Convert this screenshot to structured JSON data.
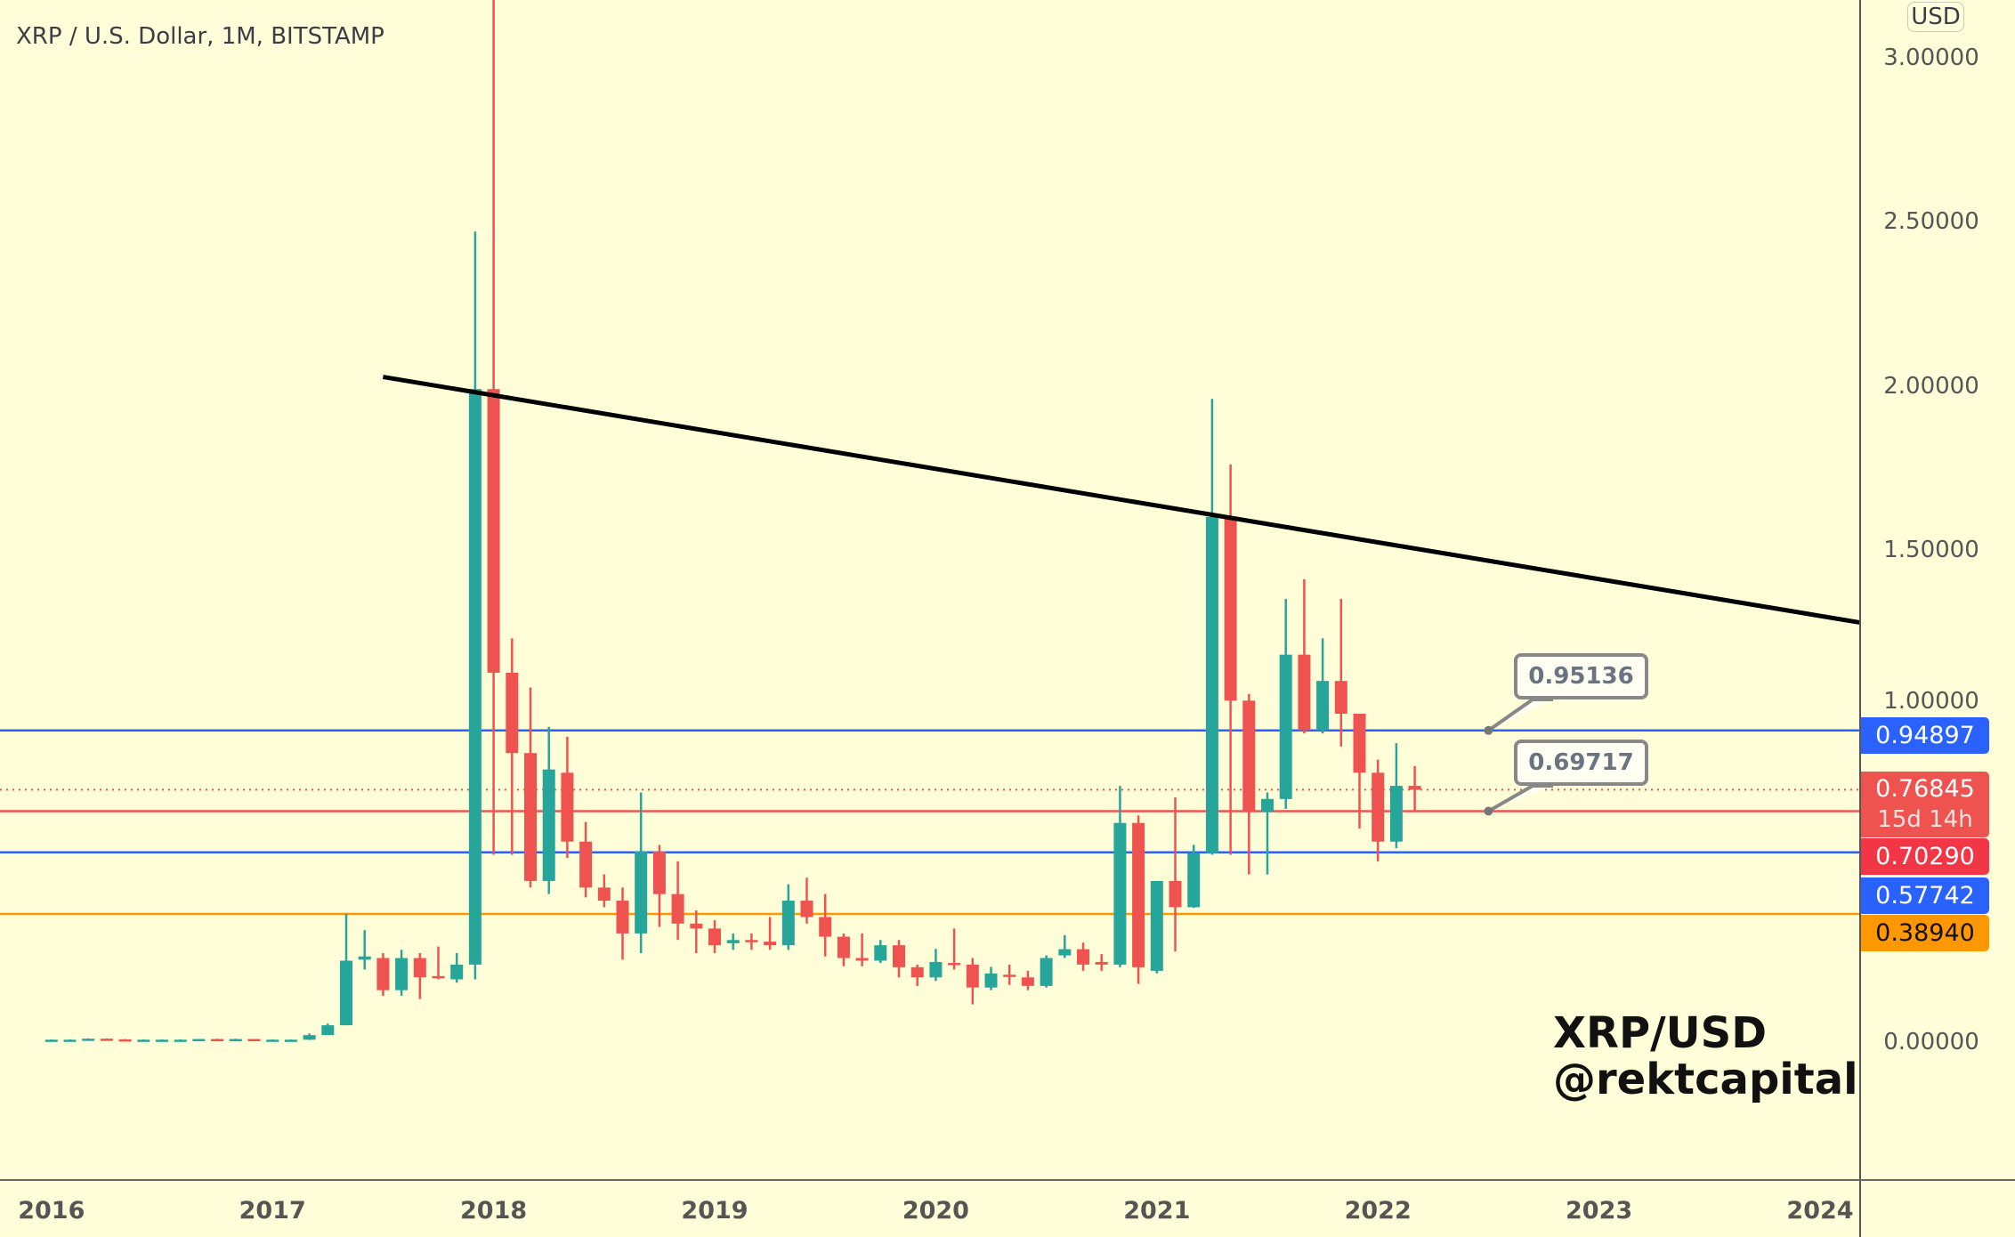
{
  "header": {
    "title": "XRP / U.S. Dollar, 1M, BITSTAMP",
    "currency_button": "USD"
  },
  "watermark": {
    "line1": "XRP/USD",
    "line2": "@rektcapital"
  },
  "colors": {
    "background": "#fffed9",
    "up": "#26a69a",
    "down": "#ef5350",
    "trendline": "#000000",
    "blue_level": "#2962ff",
    "red_level": "#ef5350",
    "orange_level": "#ff9800"
  },
  "chart_data": {
    "type": "candlestick",
    "title": "XRP / U.S. Dollar, 1M, BITSTAMP",
    "interval": "1M",
    "ylim": [
      0,
      3.18
    ],
    "y_ticks": [
      "3.00000",
      "2.50000",
      "2.00000",
      "1.50000",
      "1.00000",
      "0.00000"
    ],
    "y_tick_values": [
      3.0,
      2.5,
      2.0,
      1.5,
      1.0,
      0.0
    ],
    "x_ticks": [
      "2016",
      "2017",
      "2018",
      "2019",
      "2020",
      "2021",
      "2022",
      "2023",
      "2024"
    ],
    "grid": false,
    "candles_columns": [
      "month",
      "open",
      "high",
      "low",
      "close"
    ],
    "candles": [
      [
        "2016-01",
        0.006,
        0.007,
        0.005,
        0.006
      ],
      [
        "2016-02",
        0.006,
        0.007,
        0.005,
        0.006
      ],
      [
        "2016-03",
        0.006,
        0.01,
        0.006,
        0.009
      ],
      [
        "2016-04",
        0.009,
        0.01,
        0.007,
        0.007
      ],
      [
        "2016-05",
        0.007,
        0.008,
        0.006,
        0.006
      ],
      [
        "2016-06",
        0.006,
        0.007,
        0.005,
        0.006
      ],
      [
        "2016-07",
        0.006,
        0.007,
        0.005,
        0.006
      ],
      [
        "2016-08",
        0.006,
        0.007,
        0.005,
        0.006
      ],
      [
        "2016-09",
        0.006,
        0.008,
        0.006,
        0.008
      ],
      [
        "2016-10",
        0.008,
        0.009,
        0.007,
        0.007
      ],
      [
        "2016-11",
        0.007,
        0.009,
        0.007,
        0.008
      ],
      [
        "2016-12",
        0.008,
        0.008,
        0.006,
        0.006
      ],
      [
        "2017-01",
        0.006,
        0.007,
        0.005,
        0.006
      ],
      [
        "2017-02",
        0.006,
        0.007,
        0.005,
        0.006
      ],
      [
        "2017-03",
        0.006,
        0.025,
        0.005,
        0.02
      ],
      [
        "2017-04",
        0.02,
        0.055,
        0.02,
        0.05
      ],
      [
        "2017-05",
        0.05,
        0.39,
        0.05,
        0.247
      ],
      [
        "2017-06",
        0.25,
        0.34,
        0.22,
        0.26
      ],
      [
        "2017-07",
        0.255,
        0.27,
        0.14,
        0.157
      ],
      [
        "2017-08",
        0.157,
        0.28,
        0.14,
        0.255
      ],
      [
        "2017-09",
        0.255,
        0.27,
        0.13,
        0.196
      ],
      [
        "2017-10",
        0.2,
        0.29,
        0.19,
        0.196
      ],
      [
        "2017-11",
        0.19,
        0.27,
        0.18,
        0.235
      ],
      [
        "2017-12",
        0.235,
        2.47,
        0.19,
        1.99
      ],
      [
        "2018-01",
        1.99,
        3.3,
        0.57,
        1.125
      ],
      [
        "2018-02",
        1.125,
        1.23,
        0.57,
        0.88
      ],
      [
        "2018-03",
        0.88,
        1.08,
        0.47,
        0.49
      ],
      [
        "2018-04",
        0.49,
        0.96,
        0.45,
        0.83
      ],
      [
        "2018-05",
        0.82,
        0.93,
        0.56,
        0.61
      ],
      [
        "2018-06",
        0.61,
        0.67,
        0.44,
        0.47
      ],
      [
        "2018-07",
        0.47,
        0.51,
        0.41,
        0.43
      ],
      [
        "2018-08",
        0.43,
        0.47,
        0.25,
        0.33
      ],
      [
        "2018-09",
        0.33,
        0.76,
        0.27,
        0.58
      ],
      [
        "2018-10",
        0.58,
        0.6,
        0.35,
        0.45
      ],
      [
        "2018-11",
        0.45,
        0.55,
        0.31,
        0.36
      ],
      [
        "2018-12",
        0.36,
        0.4,
        0.27,
        0.345
      ],
      [
        "2019-01",
        0.345,
        0.37,
        0.27,
        0.294
      ],
      [
        "2019-02",
        0.3,
        0.33,
        0.28,
        0.31
      ],
      [
        "2019-03",
        0.31,
        0.33,
        0.28,
        0.305
      ],
      [
        "2019-04",
        0.305,
        0.38,
        0.28,
        0.294
      ],
      [
        "2019-05",
        0.294,
        0.48,
        0.28,
        0.43
      ],
      [
        "2019-06",
        0.43,
        0.5,
        0.36,
        0.38
      ],
      [
        "2019-07",
        0.38,
        0.45,
        0.26,
        0.32
      ],
      [
        "2019-08",
        0.32,
        0.33,
        0.23,
        0.255
      ],
      [
        "2019-09",
        0.255,
        0.33,
        0.23,
        0.247
      ],
      [
        "2019-10",
        0.247,
        0.31,
        0.24,
        0.294
      ],
      [
        "2019-11",
        0.294,
        0.31,
        0.196,
        0.227
      ],
      [
        "2019-12",
        0.227,
        0.235,
        0.17,
        0.196
      ],
      [
        "2020-01",
        0.196,
        0.283,
        0.185,
        0.243
      ],
      [
        "2020-02",
        0.24,
        0.345,
        0.22,
        0.235
      ],
      [
        "2020-03",
        0.235,
        0.255,
        0.114,
        0.165
      ],
      [
        "2020-04",
        0.165,
        0.228,
        0.157,
        0.208
      ],
      [
        "2020-05",
        0.204,
        0.235,
        0.173,
        0.2
      ],
      [
        "2020-06",
        0.196,
        0.216,
        0.157,
        0.17
      ],
      [
        "2020-07",
        0.17,
        0.263,
        0.165,
        0.255
      ],
      [
        "2020-08",
        0.263,
        0.325,
        0.255,
        0.282
      ],
      [
        "2020-09",
        0.282,
        0.302,
        0.216,
        0.235
      ],
      [
        "2020-10",
        0.243,
        0.267,
        0.216,
        0.235
      ],
      [
        "2020-11",
        0.235,
        0.78,
        0.227,
        0.667
      ],
      [
        "2020-12",
        0.667,
        0.69,
        0.176,
        0.227
      ],
      [
        "2021-01",
        0.216,
        0.49,
        0.208,
        0.49
      ],
      [
        "2021-02",
        0.49,
        0.745,
        0.275,
        0.41
      ],
      [
        "2021-03",
        0.41,
        0.6,
        0.408,
        0.575
      ],
      [
        "2021-04",
        0.575,
        1.96,
        0.57,
        1.6
      ],
      [
        "2021-05",
        1.6,
        1.76,
        0.57,
        1.04
      ],
      [
        "2021-06",
        1.04,
        1.06,
        0.51,
        0.7
      ],
      [
        "2021-07",
        0.7,
        0.76,
        0.51,
        0.74
      ],
      [
        "2021-08",
        0.74,
        1.35,
        0.71,
        1.18
      ],
      [
        "2021-09",
        1.18,
        1.41,
        0.94,
        0.95
      ],
      [
        "2021-10",
        0.95,
        1.23,
        0.94,
        1.1
      ],
      [
        "2021-11",
        1.1,
        1.35,
        0.9,
        1.0
      ],
      [
        "2021-12",
        1.0,
        1.0,
        0.65,
        0.82
      ],
      [
        "2022-01",
        0.82,
        0.86,
        0.55,
        0.61
      ],
      [
        "2022-02",
        0.61,
        0.91,
        0.59,
        0.78
      ],
      [
        "2022-03",
        0.78,
        0.84,
        0.7,
        0.768
      ]
    ],
    "trendline": {
      "start": [
        "2017-07",
        2.027
      ],
      "end": [
        "2024-03",
        1.278
      ]
    },
    "horizontal_levels": [
      {
        "value": 0.94897,
        "label": "0.94897",
        "color": "#2962ff"
      },
      {
        "value": 0.7029,
        "label": "0.70290",
        "color": "#ef5350"
      },
      {
        "value": 0.57742,
        "label": "0.57742",
        "color": "#2962ff"
      },
      {
        "value": 0.3894,
        "label": "0.38940",
        "color": "#ff9800"
      }
    ],
    "current_price": {
      "value": 0.76845,
      "label": "0.76845",
      "countdown": "15d 14h"
    },
    "callouts": [
      {
        "text": "0.95136",
        "anchor": [
          "2022-07",
          0.94897
        ]
      },
      {
        "text": "0.69717",
        "anchor": [
          "2022-07",
          0.7029
        ]
      }
    ]
  }
}
